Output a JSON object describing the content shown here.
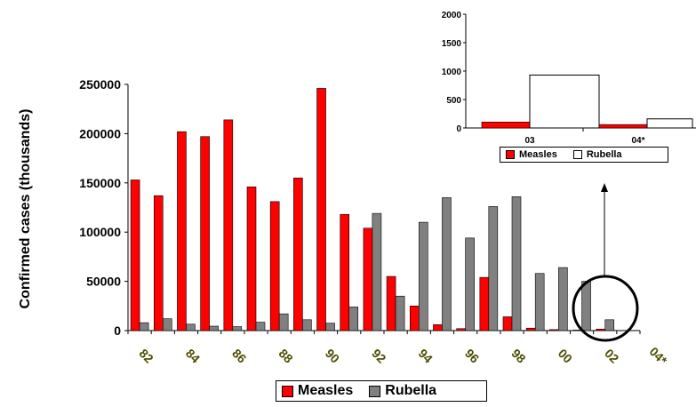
{
  "colors": {
    "measles": "#ff0000",
    "rubella": "#808080",
    "rubella_inset": "#ffffff",
    "tick_label": "#4d4d00"
  },
  "chart_data": [
    {
      "type": "bar",
      "ylabel": "Confirmed cases (thousands)",
      "xlabel": "",
      "ylim": [
        0,
        250000
      ],
      "y_ticks": [
        "0",
        "50000",
        "100000",
        "150000",
        "200000",
        "250000"
      ],
      "x_tick_labels": [
        "82",
        "84",
        "86",
        "88",
        "90",
        "92",
        "94",
        "96",
        "98",
        "00",
        "02",
        "04*"
      ],
      "legend": {
        "placement": "bottom",
        "entries": [
          "Measles",
          "Rubella"
        ]
      },
      "grid": false,
      "series": [
        {
          "name": "Measles",
          "values": [
            153000,
            137000,
            202000,
            197000,
            214000,
            146000,
            131000,
            155000,
            246000,
            118000,
            104000,
            55000,
            25000,
            6000,
            2000,
            54000,
            14000,
            2500,
            1000,
            500,
            1500,
            100
          ]
        },
        {
          "name": "Rubella",
          "values": [
            8000,
            12000,
            6500,
            4500,
            4000,
            8500,
            17000,
            11000,
            7500,
            24000,
            119000,
            35000,
            110000,
            135000,
            94000,
            126000,
            136000,
            58000,
            64000,
            50000,
            11000,
            150
          ]
        }
      ],
      "annotation": "circle with arrow pointing to inset for 03 and 04*"
    },
    {
      "type": "bar",
      "ylim": [
        0,
        2000
      ],
      "y_ticks": [
        "0",
        "500",
        "1000",
        "1500",
        "2000"
      ],
      "categories": [
        "03",
        "04*"
      ],
      "legend": {
        "placement": "bottom",
        "entries": [
          "Measles",
          "Rubella"
        ]
      },
      "series": [
        {
          "name": "Measles",
          "values": [
            105,
            60
          ]
        },
        {
          "name": "Rubella",
          "values": [
            930,
            160
          ]
        }
      ]
    }
  ]
}
